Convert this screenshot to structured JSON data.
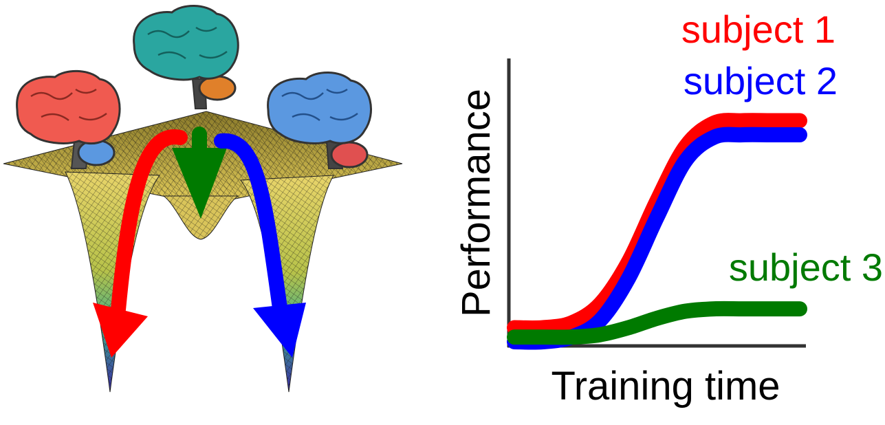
{
  "colors": {
    "subject1": "#ff0000",
    "subject2": "#0000ff",
    "subject3": "#007a00",
    "brain_red": "#f05a50",
    "brain_teal": "#2aa6a0",
    "brain_blue": "#5b98e0",
    "surface_top": "#e6d36a",
    "surface_bottom": "#3b2aa8"
  },
  "legend": {
    "subject1": "subject 1",
    "subject2": "subject 2",
    "subject3": "subject 3"
  },
  "axes": {
    "ylabel": "Performance",
    "xlabel": "Training time"
  },
  "landscape": {
    "icons": [
      "brain-red-icon",
      "brain-teal-icon",
      "brain-blue-icon",
      "energy-landscape-surface"
    ]
  },
  "chart_data": {
    "type": "line",
    "xlabel": "Training time",
    "ylabel": "Performance",
    "xlim": [
      0,
      1
    ],
    "ylim": [
      0,
      1
    ],
    "series": [
      {
        "name": "subject 1",
        "x": [
          0,
          0.1,
          0.2,
          0.3,
          0.4,
          0.5,
          0.6,
          0.7,
          0.8,
          0.9,
          1.0
        ],
        "values": [
          0.06,
          0.06,
          0.08,
          0.16,
          0.34,
          0.6,
          0.83,
          0.93,
          0.94,
          0.94,
          0.94
        ]
      },
      {
        "name": "subject 2",
        "x": [
          0,
          0.1,
          0.2,
          0.3,
          0.4,
          0.5,
          0.6,
          0.7,
          0.8,
          0.9,
          1.0
        ],
        "values": [
          0.0,
          0.0,
          0.02,
          0.09,
          0.27,
          0.53,
          0.77,
          0.87,
          0.88,
          0.88,
          0.88
        ]
      },
      {
        "name": "subject 3",
        "x": [
          0,
          0.1,
          0.2,
          0.3,
          0.4,
          0.5,
          0.6,
          0.7,
          0.8,
          0.9,
          1.0
        ],
        "values": [
          0.02,
          0.02,
          0.02,
          0.03,
          0.06,
          0.1,
          0.13,
          0.14,
          0.14,
          0.14,
          0.14
        ]
      }
    ]
  }
}
